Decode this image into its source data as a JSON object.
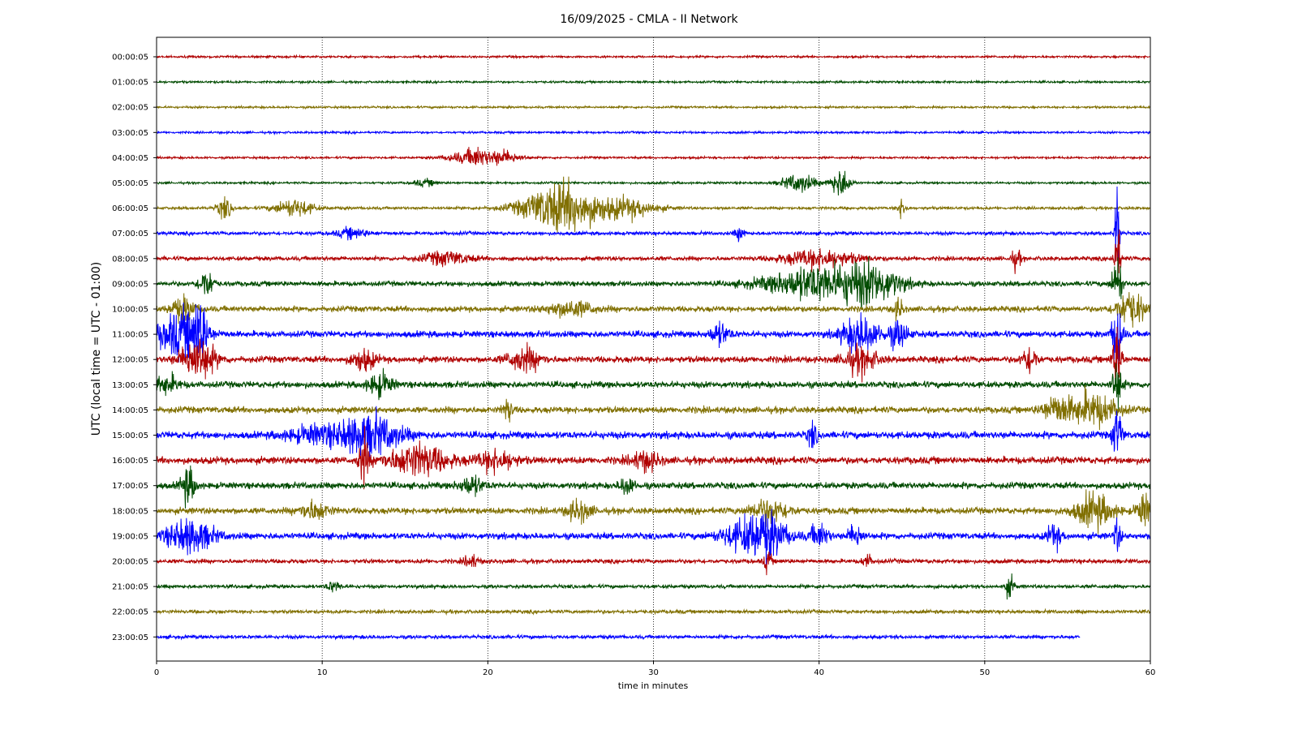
{
  "chart_data": {
    "type": "line",
    "title": "16/09/2025 - CMLA - II Network",
    "xlabel": "time in minutes",
    "ylabel": "UTC (local time = UTC - 01:00)",
    "xlim": [
      0,
      60
    ],
    "xticks": [
      "0",
      "10",
      "20",
      "30",
      "40",
      "50",
      "60"
    ],
    "grid": "vertical dotted at x ticks",
    "colors": [
      "#b00000",
      "#004b00",
      "#806f00",
      "#0000ff"
    ],
    "rows": [
      {
        "label": "00:00:05",
        "base": 3,
        "end": 60,
        "events": []
      },
      {
        "label": "01:00:05",
        "base": 3,
        "end": 60,
        "events": []
      },
      {
        "label": "02:00:05",
        "base": 3,
        "end": 60,
        "events": []
      },
      {
        "label": "03:00:05",
        "base": 3,
        "end": 60,
        "events": []
      },
      {
        "label": "04:00:05",
        "base": 3,
        "end": 60,
        "events": [
          [
            18.5,
            0.8,
            7
          ],
          [
            19.3,
            0.4,
            10
          ],
          [
            20.8,
            0.8,
            11
          ]
        ]
      },
      {
        "label": "05:00:05",
        "base": 3,
        "end": 60,
        "events": [
          [
            16.2,
            0.5,
            5
          ],
          [
            38.8,
            0.7,
            14
          ],
          [
            41.3,
            0.4,
            23
          ]
        ]
      },
      {
        "label": "06:00:05",
        "base": 4,
        "end": 60,
        "events": [
          [
            4.1,
            0.3,
            16
          ],
          [
            8.3,
            0.8,
            14
          ],
          [
            24.5,
            1.6,
            40
          ],
          [
            28.5,
            1.2,
            14
          ],
          [
            45.0,
            0.2,
            14
          ]
        ]
      },
      {
        "label": "07:00:05",
        "base": 5,
        "end": 60,
        "events": [
          [
            11.8,
            0.6,
            8
          ],
          [
            35.2,
            0.2,
            10
          ],
          [
            58.0,
            0.1,
            85
          ]
        ]
      },
      {
        "label": "08:00:05",
        "base": 6,
        "end": 60,
        "events": [
          [
            17.5,
            1.0,
            10
          ],
          [
            40.0,
            1.5,
            14
          ],
          [
            51.9,
            0.2,
            15
          ],
          [
            58.0,
            0.15,
            45
          ]
        ]
      },
      {
        "label": "09:00:05",
        "base": 7,
        "end": 60,
        "events": [
          [
            3.0,
            0.3,
            22
          ],
          [
            40.0,
            2.2,
            26
          ],
          [
            43.2,
            1.2,
            24
          ],
          [
            58.0,
            0.2,
            50
          ]
        ]
      },
      {
        "label": "10:00:05",
        "base": 8,
        "end": 60,
        "events": [
          [
            1.6,
            0.5,
            18
          ],
          [
            25.0,
            1.0,
            12
          ],
          [
            44.8,
            0.2,
            16
          ],
          [
            58.8,
            0.6,
            28
          ]
        ]
      },
      {
        "label": "11:00:05",
        "base": 9,
        "end": 60,
        "events": [
          [
            1.5,
            1.0,
            35
          ],
          [
            2.6,
            0.3,
            40
          ],
          [
            34.0,
            0.4,
            16
          ],
          [
            42.5,
            0.8,
            28
          ],
          [
            44.8,
            0.4,
            20
          ],
          [
            58.0,
            0.2,
            60
          ]
        ]
      },
      {
        "label": "12:00:05",
        "base": 9,
        "end": 60,
        "events": [
          [
            2.5,
            0.7,
            35
          ],
          [
            12.5,
            0.5,
            16
          ],
          [
            22.2,
            0.7,
            18
          ],
          [
            42.5,
            0.7,
            20
          ],
          [
            52.7,
            0.3,
            22
          ],
          [
            58.0,
            0.2,
            50
          ]
        ]
      },
      {
        "label": "13:00:05",
        "base": 9,
        "end": 60,
        "events": [
          [
            0.6,
            0.5,
            14
          ],
          [
            13.5,
            0.5,
            18
          ],
          [
            58.0,
            0.2,
            40
          ]
        ]
      },
      {
        "label": "14:00:05",
        "base": 9,
        "end": 60,
        "events": [
          [
            21.2,
            0.2,
            18
          ],
          [
            54.3,
            0.6,
            20
          ],
          [
            56.5,
            1.0,
            26
          ]
        ]
      },
      {
        "label": "15:00:05",
        "base": 10,
        "end": 60,
        "events": [
          [
            9.5,
            1.2,
            12
          ],
          [
            12.8,
            1.3,
            32
          ],
          [
            39.6,
            0.2,
            18
          ],
          [
            58.0,
            0.2,
            40
          ]
        ]
      },
      {
        "label": "16:00:05",
        "base": 10,
        "end": 60,
        "events": [
          [
            12.5,
            0.2,
            40
          ],
          [
            15.8,
            1.3,
            24
          ],
          [
            20.5,
            0.8,
            16
          ],
          [
            29.5,
            0.6,
            14
          ]
        ]
      },
      {
        "label": "17:00:05",
        "base": 9,
        "end": 60,
        "events": [
          [
            1.9,
            0.3,
            28
          ],
          [
            19.0,
            0.5,
            14
          ],
          [
            28.4,
            0.3,
            14
          ]
        ]
      },
      {
        "label": "18:00:05",
        "base": 9,
        "end": 60,
        "events": [
          [
            9.5,
            0.6,
            14
          ],
          [
            25.5,
            0.5,
            16
          ],
          [
            37.0,
            0.8,
            18
          ],
          [
            56.6,
            0.8,
            26
          ],
          [
            59.6,
            0.3,
            24
          ]
        ]
      },
      {
        "label": "19:00:05",
        "base": 9,
        "end": 60,
        "events": [
          [
            2.0,
            1.0,
            26
          ],
          [
            35.5,
            1.0,
            22
          ],
          [
            37.0,
            0.8,
            28
          ],
          [
            40.0,
            0.4,
            18
          ],
          [
            42.2,
            0.3,
            18
          ],
          [
            54.2,
            0.3,
            18
          ],
          [
            58.0,
            0.15,
            25
          ]
        ]
      },
      {
        "label": "20:00:05",
        "base": 6,
        "end": 60,
        "events": [
          [
            19.0,
            0.3,
            10
          ],
          [
            36.9,
            0.15,
            18
          ],
          [
            42.9,
            0.2,
            10
          ]
        ]
      },
      {
        "label": "21:00:05",
        "base": 5,
        "end": 60,
        "events": [
          [
            10.7,
            0.3,
            8
          ],
          [
            51.5,
            0.2,
            16
          ]
        ]
      },
      {
        "label": "22:00:05",
        "base": 5,
        "end": 60,
        "events": []
      },
      {
        "label": "23:00:05",
        "base": 5,
        "end": 55.75,
        "events": []
      }
    ]
  }
}
